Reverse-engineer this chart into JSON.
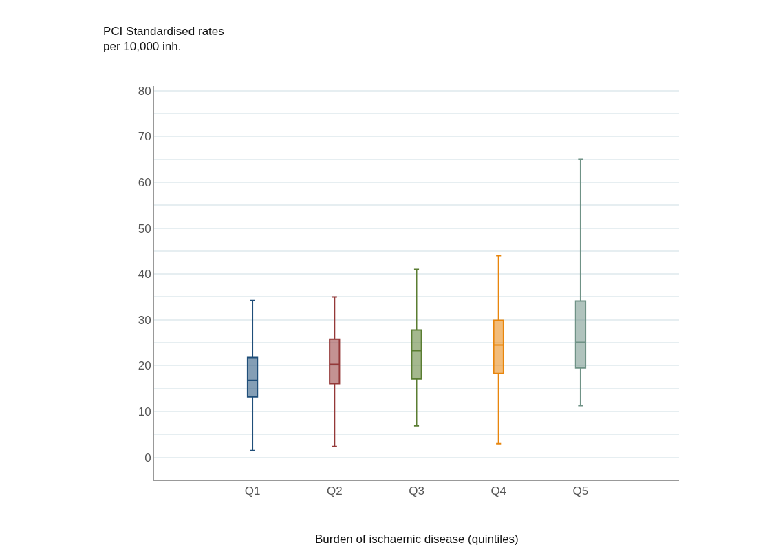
{
  "chart_data": {
    "type": "box",
    "categories": [
      "Q1",
      "Q2",
      "Q3",
      "Q4",
      "Q5"
    ],
    "boxes": [
      {
        "low": 1.5,
        "q1": 13.2,
        "median": 16.8,
        "q3": 21.8,
        "high": 34.2
      },
      {
        "low": 2.4,
        "q1": 16.1,
        "median": 20.3,
        "q3": 25.8,
        "high": 35
      },
      {
        "low": 6.9,
        "q1": 17.1,
        "median": 23.3,
        "q3": 27.8,
        "high": 41
      },
      {
        "low": 3,
        "q1": 18.3,
        "median": 24.5,
        "q3": 29.9,
        "high": 44
      },
      {
        "low": 11.3,
        "q1": 19.5,
        "median": 25.1,
        "q3": 34.1,
        "high": 65
      }
    ],
    "colors": [
      "#1f4e79",
      "#943838",
      "#5a7d32",
      "#e8850c",
      "#6f9286"
    ],
    "ylabel": "PCI Standardised rates\nper 10,000 inh.",
    "xlabel": "Burden of ischaemic disease (quintiles)",
    "ylim": [
      -5,
      81
    ],
    "yticks": [
      0,
      {
        "value": 5,
        "label": null
      },
      10,
      {
        "value": 15,
        "label": null
      },
      20,
      {
        "value": 25,
        "label": null
      },
      30,
      {
        "value": 35,
        "label": null
      },
      40,
      {
        "value": 45,
        "label": null
      },
      50,
      {
        "value": 55,
        "label": null
      },
      60,
      {
        "value": 65,
        "label": null
      },
      70,
      {
        "value": 75,
        "label": null
      },
      80
    ],
    "grid": "y",
    "legend": false
  }
}
